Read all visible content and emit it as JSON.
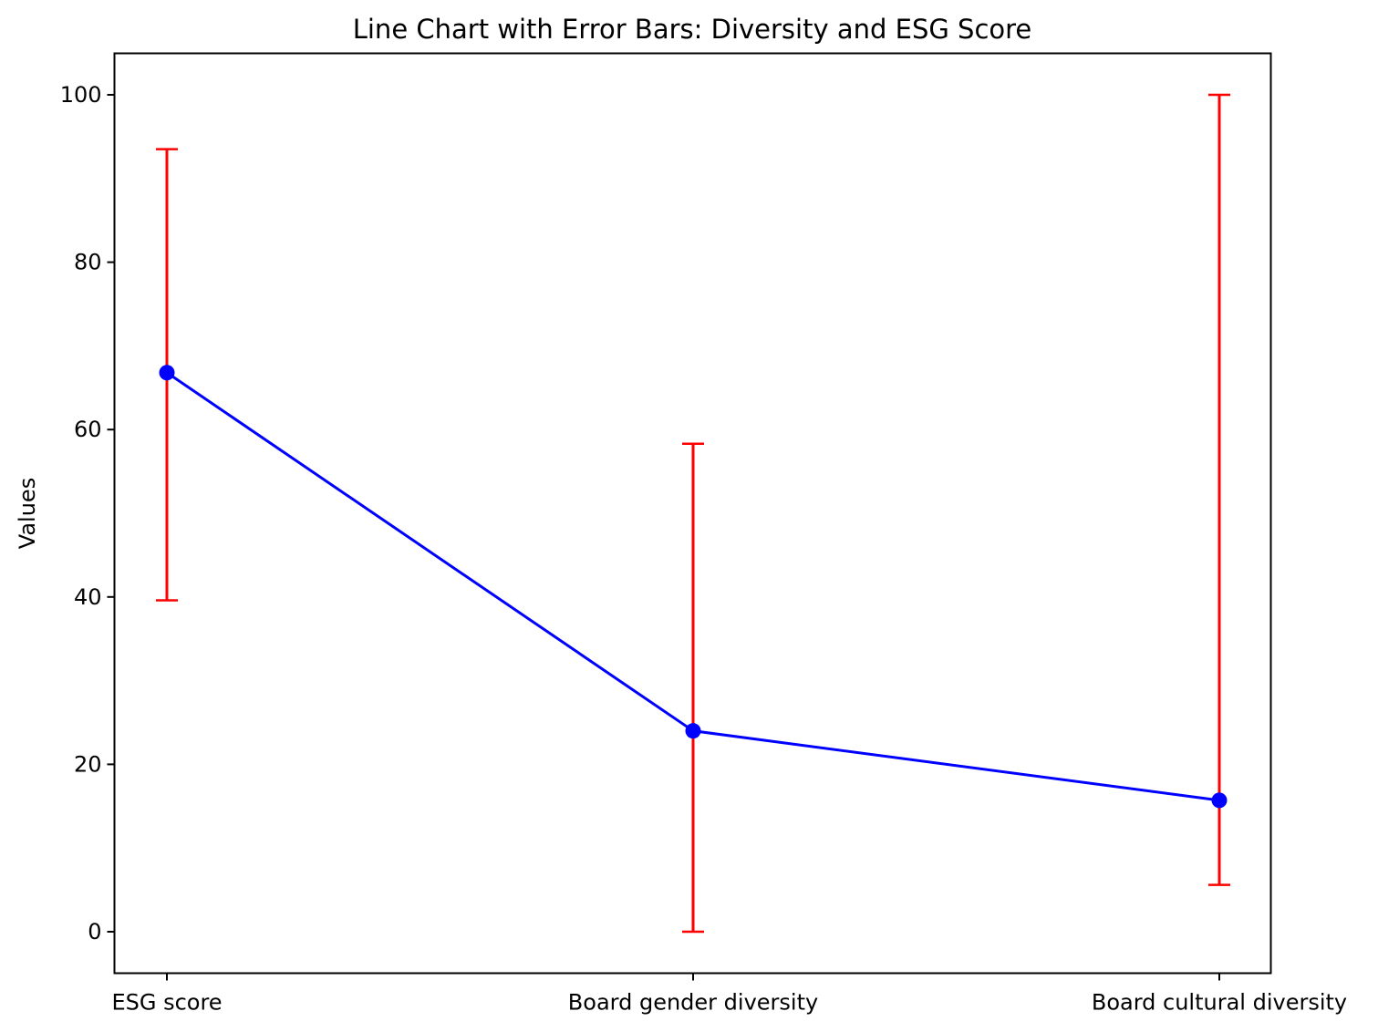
{
  "chart_data": {
    "type": "line",
    "title": "Line Chart with Error Bars: Diversity and ESG Score",
    "xlabel": "",
    "ylabel": "Values",
    "categories": [
      "ESG score",
      "Board gender diversity",
      "Board cultural diversity"
    ],
    "series": [
      {
        "values": [
          66.8,
          24.0,
          15.7
        ],
        "error_lower": [
          39.6,
          0.0,
          5.6
        ],
        "error_upper": [
          93.5,
          58.3,
          100.0
        ]
      }
    ],
    "ylim": [
      -5,
      105
    ],
    "yticks": [
      0,
      20,
      40,
      60,
      80,
      100
    ],
    "grid": false,
    "legend": "none",
    "colors": {
      "line": "#0000ff",
      "marker": "#0000ff",
      "error_bar": "#ff0000",
      "axes": "#000000"
    }
  }
}
